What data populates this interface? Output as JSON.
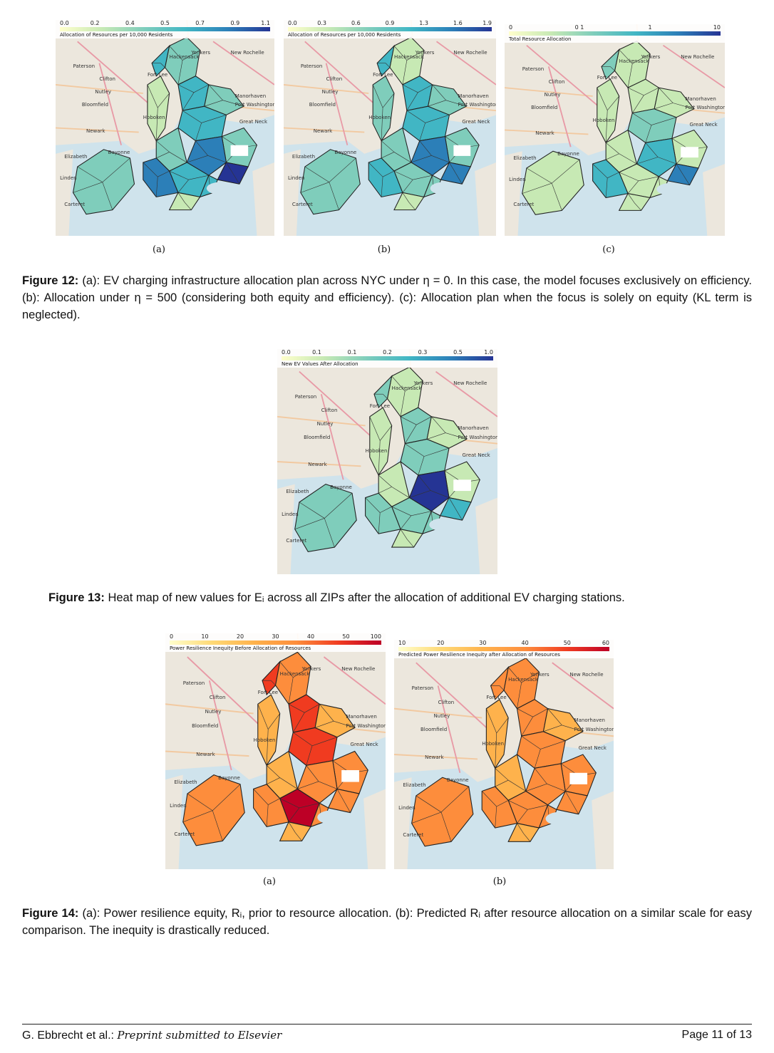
{
  "figure12": {
    "panels": [
      {
        "id": "a",
        "sub_label": "(a)",
        "legend_ticks": [
          "0.0",
          "0.2",
          "0.4",
          "0.5",
          "0.7",
          "0.9",
          "1.1"
        ],
        "legend_caption": "Allocation of Resources per 10,000 Residents",
        "palette": "greenblue",
        "colorbar": [
          "#ffffcc",
          "#c7e9b4",
          "#7fcdbb",
          "#41b6c4",
          "#2c7fb8",
          "#253494"
        ],
        "region_levels": [
          0.3,
          0.5,
          0.2,
          0.6,
          0.4,
          0.8,
          0.3,
          0.5,
          0.7,
          0.2,
          0.4,
          0.6,
          0.3,
          0.9,
          0.5
        ]
      },
      {
        "id": "b",
        "sub_label": "(b)",
        "legend_ticks": [
          "0.0",
          "0.3",
          "0.6",
          "0.9",
          "1.3",
          "1.6",
          "1.9"
        ],
        "legend_caption": "Allocation of Resources per 10,000 Residents",
        "palette": "greenblue",
        "colorbar": [
          "#ffffcc",
          "#c7e9b4",
          "#7fcdbb",
          "#41b6c4",
          "#2c7fb8",
          "#253494"
        ],
        "region_levels": [
          0.2,
          0.5,
          0.3,
          0.6,
          0.4,
          0.7,
          0.3,
          0.4,
          0.6,
          0.2,
          0.3,
          0.5,
          0.4,
          0.8,
          0.4
        ]
      },
      {
        "id": "c",
        "sub_label": "(c)",
        "legend_ticks": [
          "0",
          "0 1",
          "1",
          "10"
        ],
        "legend_caption": "Total Resource Allocation",
        "palette": "greenblue",
        "colorbar": [
          "#ffffcc",
          "#c7e9b4",
          "#7fcdbb",
          "#41b6c4",
          "#2c7fb8",
          "#253494"
        ],
        "region_levels": [
          0.1,
          0.2,
          0.1,
          0.3,
          0.2,
          0.5,
          0.1,
          0.2,
          0.6,
          0.1,
          0.2,
          0.3,
          0.1,
          0.7,
          0.2
        ]
      }
    ],
    "caption_label": "Figure 12:",
    "caption_text": " (a): EV charging infrastructure allocation plan across NYC under η = 0. In this case, the model focuses exclusively on efficiency. (b): Allocation under η = 500 (considering both equity and efficiency). (c): Allocation plan when the focus is solely on equity (KL term is neglected)."
  },
  "figure13": {
    "panel": {
      "id": "single",
      "sub_label": "",
      "legend_ticks": [
        "0.0",
        "0.1",
        "0.1",
        "0.2",
        "0.3",
        "0.5",
        "1.0"
      ],
      "legend_caption": "New EV Values After Allocation",
      "palette": "greenblue",
      "colorbar": [
        "#ffffcc",
        "#c7e9b4",
        "#7fcdbb",
        "#41b6c4",
        "#2c7fb8",
        "#253494"
      ],
      "region_levels": [
        0.2,
        0.3,
        0.1,
        0.4,
        0.2,
        0.9,
        0.2,
        0.3,
        0.4,
        0.1,
        0.3,
        0.4,
        0.2,
        0.5,
        0.3
      ]
    },
    "caption_label": "Figure 13:",
    "caption_text": " Heat map of new values for Eᵢ across all ZIPs after the allocation of additional EV charging stations."
  },
  "figure14": {
    "panels": [
      {
        "id": "a",
        "sub_label": "(a)",
        "legend_ticks": [
          "0",
          "10",
          "20",
          "30",
          "40",
          "50",
          "100"
        ],
        "legend_caption": "Power Resilience Inequity Before Allocation of Resources",
        "palette": "orangered",
        "colorbar": [
          "#ffffcc",
          "#fed976",
          "#feb24c",
          "#fd8d3c",
          "#f03b20",
          "#bd0026"
        ],
        "region_levels": [
          0.5,
          0.8,
          0.4,
          0.7,
          0.5,
          0.6,
          0.4,
          0.9,
          0.6,
          0.3,
          0.5,
          0.7,
          0.4,
          0.6,
          0.5
        ]
      },
      {
        "id": "b",
        "sub_label": "(b)",
        "legend_ticks": [
          "10",
          "20",
          "30",
          "40",
          "50",
          "60"
        ],
        "legend_caption": "Predicted Power Resilience Inequity after Allocation of Resources",
        "palette": "orangered",
        "colorbar": [
          "#ffffcc",
          "#fed976",
          "#feb24c",
          "#fd8d3c",
          "#f03b20",
          "#bd0026"
        ],
        "region_levels": [
          0.5,
          0.5,
          0.4,
          0.5,
          0.5,
          0.5,
          0.4,
          0.5,
          0.5,
          0.3,
          0.5,
          0.5,
          0.4,
          0.5,
          0.5
        ]
      }
    ],
    "caption_label": "Figure 14:",
    "caption_text": " (a): Power resilience equity, Rᵢ, prior to resource allocation. (b): Predicted Rᵢ after resource allocation on a similar scale for easy comparison. The inequity is drastically reduced."
  },
  "map_places": [
    "Yonkers",
    "New Rochelle",
    "Hackensack",
    "Paterson",
    "Clifton",
    "Nutley",
    "Bloomfield",
    "Newark",
    "Elizabeth",
    "Bayonne",
    "Linden",
    "Carteret",
    "Great Neck",
    "Manorhaven",
    "Port Washington",
    "Fort Lee",
    "Hoboken"
  ],
  "footer": {
    "author": "G. Ebbrecht et al.:",
    "venue": "Preprint submitted to Elsevier",
    "page": "Page 11 of 13"
  }
}
